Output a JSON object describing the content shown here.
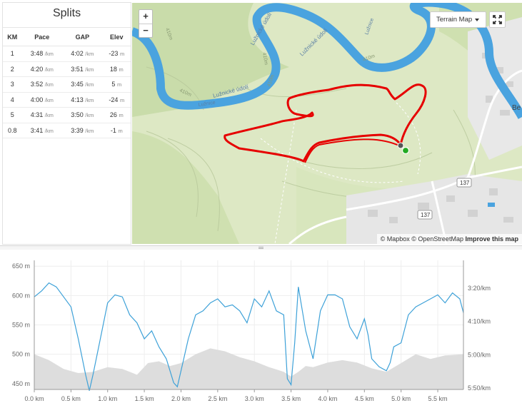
{
  "splits": {
    "title": "Splits",
    "headers": [
      "KM",
      "Pace",
      "GAP",
      "Elev"
    ],
    "rows": [
      {
        "km": "1",
        "pace": "3:48",
        "pace_unit": "/km",
        "gap": "4:02",
        "gap_unit": "/km",
        "elev": "-23",
        "elev_unit": "m"
      },
      {
        "km": "2",
        "pace": "4:20",
        "pace_unit": "/km",
        "gap": "3:51",
        "gap_unit": "/km",
        "elev": "18",
        "elev_unit": "m"
      },
      {
        "km": "3",
        "pace": "3:52",
        "pace_unit": "/km",
        "gap": "3:45",
        "gap_unit": "/km",
        "elev": "5",
        "elev_unit": "m"
      },
      {
        "km": "4",
        "pace": "4:00",
        "pace_unit": "/km",
        "gap": "4:13",
        "gap_unit": "/km",
        "elev": "-24",
        "elev_unit": "m"
      },
      {
        "km": "5",
        "pace": "4:31",
        "pace_unit": "/km",
        "gap": "3:50",
        "gap_unit": "/km",
        "elev": "26",
        "elev_unit": "m"
      },
      {
        "km": "0.8",
        "pace": "3:41",
        "pace_unit": "/km",
        "gap": "3:39",
        "gap_unit": "/km",
        "elev": "-1",
        "elev_unit": "m"
      }
    ]
  },
  "map": {
    "zoom_in": "+",
    "zoom_out": "−",
    "style_selector": "Terrain Map",
    "fullscreen_icon": "expand-icon",
    "attribution": {
      "mapbox": "© Mapbox",
      "osm": "© OpenStreetMap",
      "improve": "Improve this map"
    },
    "labels": {
      "river_top": "Lužnické údolí",
      "river_top2": "Lužnické údolí",
      "river_top3": "Lužnice",
      "river_left": "Lužnice",
      "river_mid": "Lužnické údolí",
      "road_137a": "137",
      "road_137b": "137",
      "town": "Be",
      "contour_410a": "410m",
      "contour_410b": "410m",
      "contour_410c": "410m",
      "contour_410d": "410m",
      "contour_410e": "410m"
    },
    "colors": {
      "route": "#e60000",
      "river": "#4aa3df",
      "land": "#dde8c4",
      "forest": "#c9dcaa",
      "urban": "#e6e6e6",
      "start_marker": "#22aa22"
    }
  },
  "chart_data": {
    "type": "area",
    "x_axis": {
      "ticks": [
        "0.0 km",
        "0.5 km",
        "1.0 km",
        "1.5 km",
        "2.0 km",
        "2.5 km",
        "3.0 km",
        "3.5 km",
        "4.0 km",
        "4.5 km",
        "5.0 km",
        "5.5 km"
      ],
      "range": [
        0,
        5.85
      ]
    },
    "y_left": {
      "ticks": [
        "650 m",
        "600 m",
        "550 m",
        "500 m",
        "450 m"
      ],
      "range": [
        440,
        660
      ]
    },
    "y_right": {
      "ticks": [
        "3:20/km",
        "4:10/km",
        "5:00/km",
        "5:50/km"
      ]
    },
    "series": [
      {
        "kind": "elevation",
        "unit": "m",
        "color": "#dddddd",
        "x": [
          0,
          0.2,
          0.4,
          0.6,
          0.8,
          1.0,
          1.2,
          1.3,
          1.4,
          1.55,
          1.7,
          1.85,
          2.0,
          2.2,
          2.4,
          2.6,
          2.8,
          3.0,
          3.2,
          3.4,
          3.5,
          3.6,
          3.7,
          3.8,
          4.0,
          4.2,
          4.4,
          4.6,
          4.8,
          5.0,
          5.2,
          5.4,
          5.6,
          5.85
        ],
        "y": [
          500,
          490,
          475,
          468,
          470,
          478,
          475,
          470,
          465,
          485,
          488,
          480,
          485,
          500,
          510,
          505,
          495,
          488,
          478,
          470,
          462,
          470,
          480,
          478,
          486,
          490,
          486,
          476,
          470,
          485,
          500,
          492,
          498,
          500
        ]
      },
      {
        "kind": "pace",
        "unit": "min/km",
        "color": "#3da1d8",
        "x": [
          0,
          0.1,
          0.2,
          0.3,
          0.4,
          0.5,
          0.6,
          0.7,
          0.75,
          0.8,
          0.9,
          1.0,
          1.1,
          1.2,
          1.3,
          1.4,
          1.5,
          1.6,
          1.7,
          1.8,
          1.9,
          1.95,
          2.0,
          2.1,
          2.2,
          2.3,
          2.4,
          2.5,
          2.6,
          2.7,
          2.8,
          2.9,
          3.0,
          3.1,
          3.2,
          3.3,
          3.4,
          3.45,
          3.5,
          3.55,
          3.6,
          3.7,
          3.8,
          3.9,
          4.0,
          4.1,
          4.2,
          4.3,
          4.4,
          4.5,
          4.55,
          4.6,
          4.7,
          4.8,
          4.85,
          4.9,
          5.0,
          5.1,
          5.2,
          5.3,
          5.4,
          5.5,
          5.6,
          5.7,
          5.8,
          5.85
        ],
        "y": [
          3.55,
          3.4,
          3.2,
          3.3,
          3.55,
          3.8,
          4.6,
          5.5,
          5.9,
          5.5,
          4.6,
          3.7,
          3.5,
          3.55,
          4.0,
          4.2,
          4.6,
          4.4,
          4.8,
          5.1,
          5.7,
          5.8,
          5.4,
          4.6,
          4.0,
          3.9,
          3.7,
          3.6,
          3.8,
          3.75,
          3.9,
          4.2,
          3.6,
          3.8,
          3.4,
          3.9,
          4.0,
          5.6,
          5.75,
          4.7,
          3.3,
          4.4,
          5.1,
          3.9,
          3.5,
          3.5,
          3.6,
          4.3,
          4.6,
          4.1,
          4.5,
          5.1,
          5.3,
          5.4,
          5.2,
          4.8,
          4.7,
          4.0,
          3.8,
          3.7,
          3.6,
          3.5,
          3.7,
          3.45,
          3.6,
          3.95
        ]
      }
    ]
  }
}
